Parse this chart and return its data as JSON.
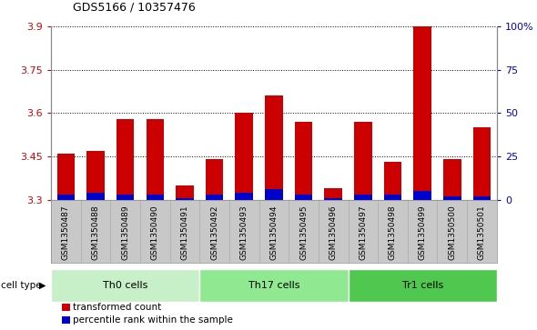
{
  "title": "GDS5166 / 10357476",
  "samples": [
    "GSM1350487",
    "GSM1350488",
    "GSM1350489",
    "GSM1350490",
    "GSM1350491",
    "GSM1350492",
    "GSM1350493",
    "GSM1350494",
    "GSM1350495",
    "GSM1350496",
    "GSM1350497",
    "GSM1350498",
    "GSM1350499",
    "GSM1350500",
    "GSM1350501"
  ],
  "transformed_count": [
    3.46,
    3.47,
    3.58,
    3.58,
    3.35,
    3.44,
    3.6,
    3.66,
    3.57,
    3.34,
    3.57,
    3.43,
    3.9,
    3.44,
    3.55
  ],
  "percentile_rank": [
    3,
    4,
    3,
    3,
    1,
    3,
    4,
    6,
    3,
    1,
    3,
    3,
    5,
    2,
    2
  ],
  "cell_types": [
    {
      "label": "Th0 cells",
      "start": 0,
      "end": 5,
      "color": "#c8f0c8"
    },
    {
      "label": "Th17 cells",
      "start": 5,
      "end": 10,
      "color": "#90e890"
    },
    {
      "label": "Tr1 cells",
      "start": 10,
      "end": 15,
      "color": "#50c850"
    }
  ],
  "ylim_left": [
    3.3,
    3.9
  ],
  "ylim_right": [
    0,
    100
  ],
  "yticks_left": [
    3.3,
    3.45,
    3.6,
    3.75,
    3.9
  ],
  "yticks_right": [
    0,
    25,
    50,
    75,
    100
  ],
  "ytick_labels_right": [
    "0",
    "25",
    "50",
    "75",
    "100%"
  ],
  "bar_color_red": "#cc0000",
  "bar_color_blue": "#0000cc",
  "xticklabel_bg": "#c8c8c8",
  "cell_type_border": "#888888",
  "plot_bg": "#ffffff",
  "left_tick_color": "#cc0000",
  "right_tick_color": "#0000cc"
}
